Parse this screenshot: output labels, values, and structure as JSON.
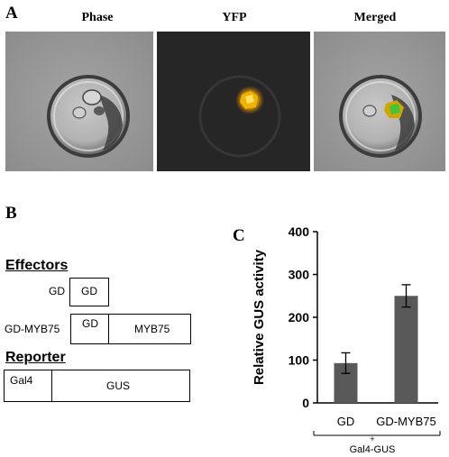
{
  "panel_a": {
    "letter": "A",
    "labels": [
      "Phase",
      "YFP",
      "Merged"
    ]
  },
  "panel_b": {
    "letter": "B",
    "effectors_heading": "Effectors",
    "reporter_heading": "Reporter",
    "construct1_name": "GD",
    "construct1_box": "GD",
    "construct2_name": "GD-MYB75",
    "construct2_box1": "GD",
    "construct2_box2": "MYB75",
    "reporter_box1": "Gal4",
    "reporter_box2": "GUS"
  },
  "panel_c": {
    "letter": "C",
    "group_sign": "+",
    "group_label": "Gal4-GUS"
  },
  "colors": {
    "bar": "#595959",
    "yfp_signal": "#e8c200",
    "gfp_center": "#43c43a"
  },
  "chart_data": {
    "type": "bar",
    "categories": [
      "GD",
      "GD-MYB75"
    ],
    "values": [
      93,
      250
    ],
    "errors": [
      24,
      26
    ],
    "ylabel": "Relative GUS activity",
    "xlabel": "",
    "ylim": [
      0,
      400
    ],
    "yticks": [
      0,
      100,
      200,
      300,
      400
    ],
    "grid": false
  }
}
